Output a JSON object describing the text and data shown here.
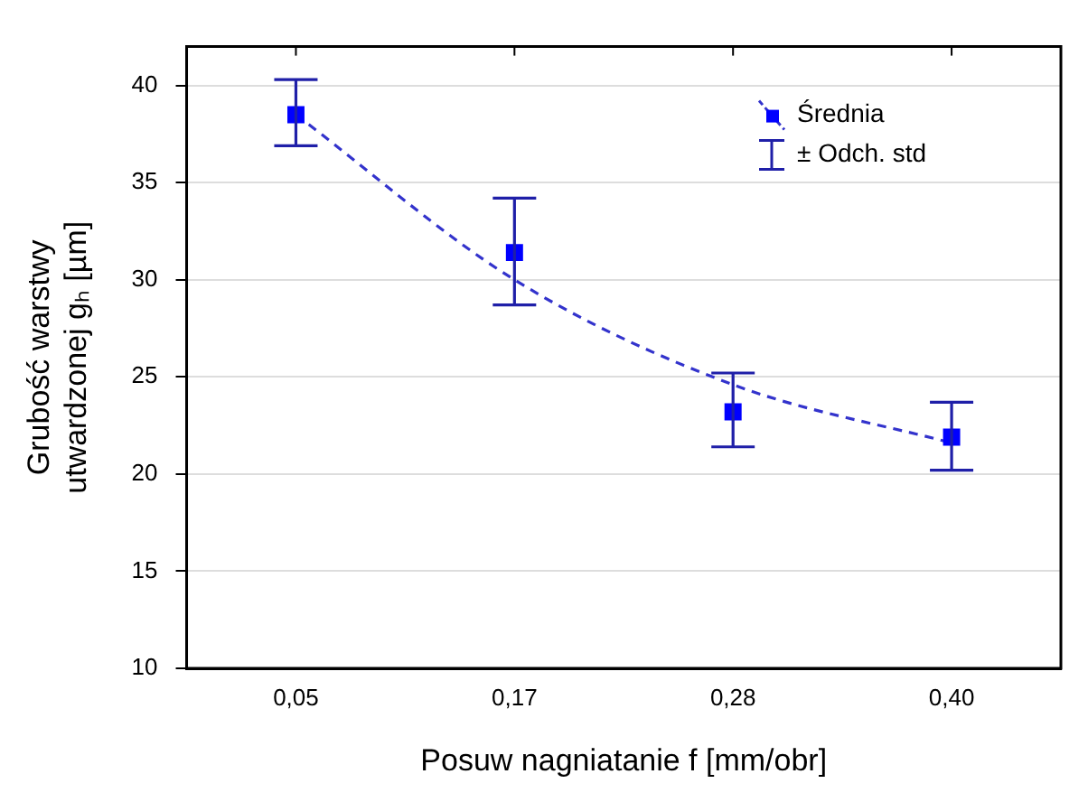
{
  "chart_data": {
    "type": "scatter",
    "xlabel": "Posuw nagniatanie f [mm/obr]",
    "ylabel": "Grubość warstwy\nutwardzonej gₕ [µm]",
    "categories": [
      "0,05",
      "0,17",
      "0,28",
      "0,40"
    ],
    "series": [
      {
        "name": "Średnia",
        "color": "#0000ff",
        "marker": "square",
        "values": [
          38.5,
          31.4,
          23.2,
          21.9
        ],
        "errors": [
          [
            36.9,
            40.3
          ],
          [
            28.7,
            34.2
          ],
          [
            21.4,
            25.2
          ],
          [
            20.2,
            23.7
          ]
        ]
      },
      {
        "type": "line",
        "color": "#3333cc",
        "line_style": "dashed",
        "marker": "none",
        "values": [
          38.5,
          30.0,
          24.6,
          21.6
        ]
      }
    ],
    "annotations": [
      "± Odch. std"
    ],
    "ylim": [
      10,
      42
    ],
    "yticks": [
      10,
      15,
      20,
      25,
      30,
      35,
      40
    ],
    "grid": "y",
    "legend": "top right"
  }
}
